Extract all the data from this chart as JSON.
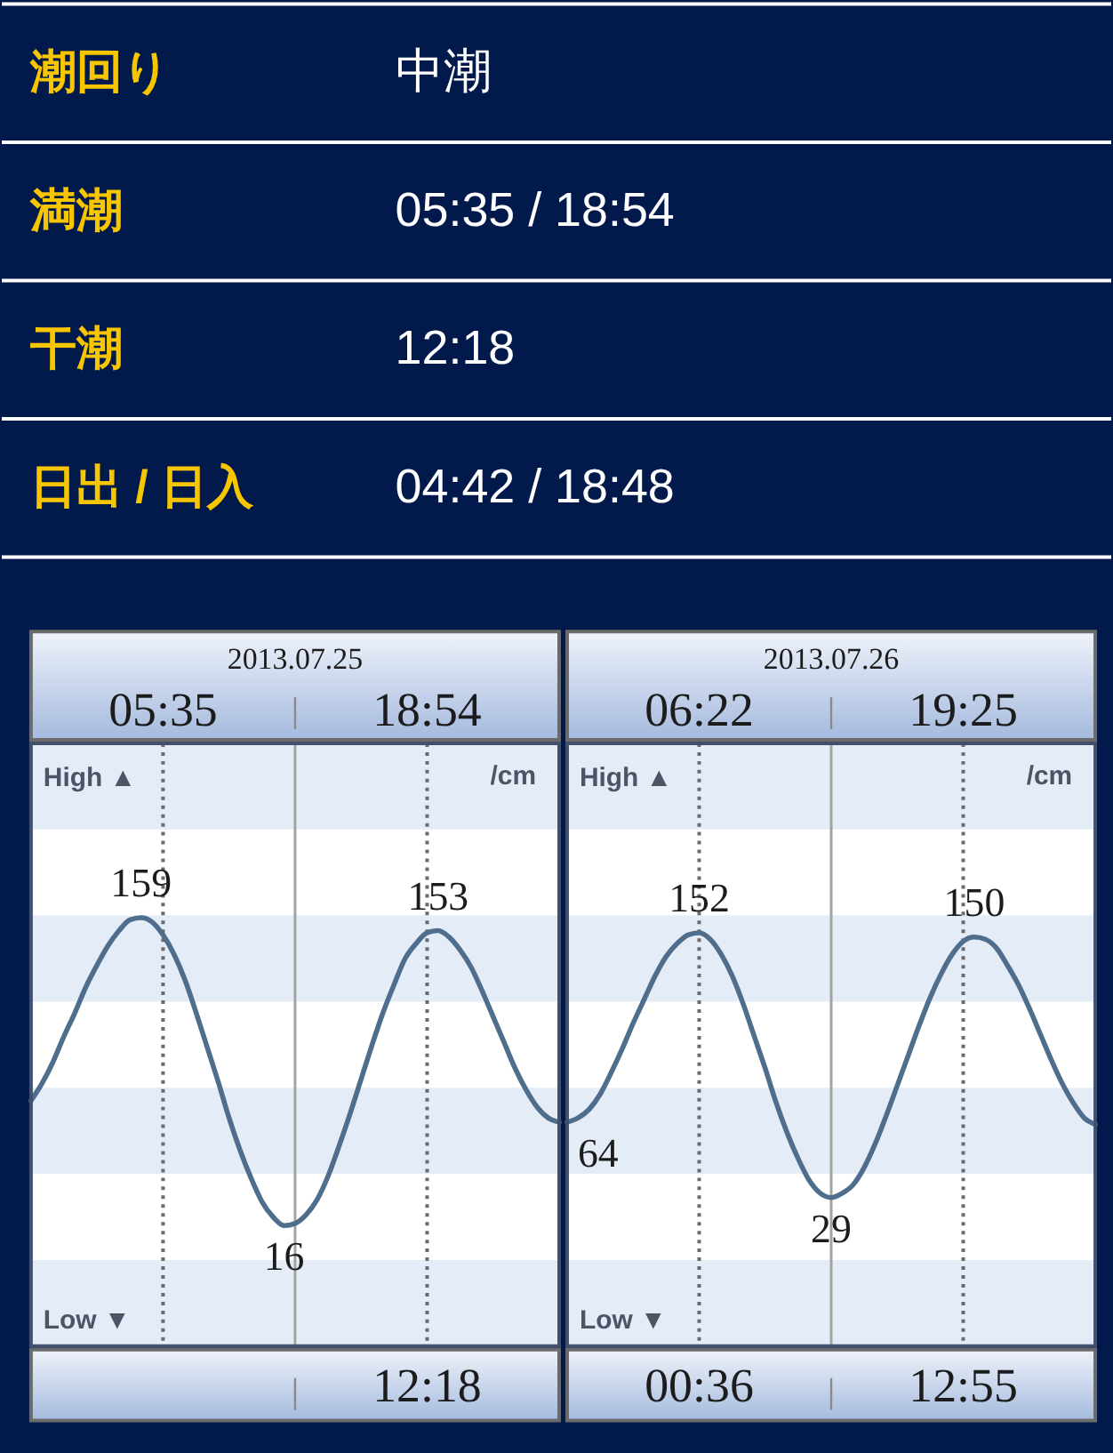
{
  "chart_data": [
    {
      "type": "other",
      "annotations": [
        "潮回り",
        "中潮",
        "満潮",
        "05:35 / 18:54",
        "干潮",
        "12:18",
        "日出 / 日入",
        "04:42 / 18:48"
      ]
    },
    {
      "type": "line",
      "title": "2013.07.25",
      "ylabel": "/cm",
      "annotations": [
        "High ▲",
        "Low ▼",
        "05:35",
        "18:54",
        "12:18"
      ],
      "categories": [
        null,
        null,
        null,
        null,
        null,
        null,
        null,
        null,
        null,
        null,
        null,
        null,
        null,
        null,
        null,
        null,
        null,
        null,
        null,
        null,
        null,
        null,
        null,
        null,
        null,
        null,
        null,
        null,
        null,
        null,
        null,
        null,
        null,
        null,
        null,
        null,
        null,
        null,
        null,
        null,
        null,
        null,
        null,
        null,
        null,
        null,
        null,
        null,
        null
      ],
      "ylim": [
        -40,
        240
      ],
      "series": [
        {
          "color": "#4f6d8c",
          "values": [
            74,
            82,
            92,
            104,
            115,
            127,
            137,
            146,
            153,
            158,
            159,
            157,
            151,
            142,
            130,
            115,
            99,
            83,
            66,
            51,
            38,
            27,
            20,
            16,
            17,
            21,
            28,
            39,
            53,
            68,
            84,
            100,
            115,
            128,
            140,
            147,
            152,
            153,
            150,
            144,
            136,
            125,
            113,
            101,
            89,
            79,
            71,
            66,
            64
          ],
          "value_labels": [
            null,
            null,
            null,
            null,
            null,
            null,
            null,
            null,
            null,
            null,
            "159",
            null,
            null,
            null,
            null,
            null,
            null,
            null,
            null,
            null,
            null,
            null,
            null,
            "16",
            null,
            null,
            null,
            null,
            null,
            null,
            null,
            null,
            null,
            null,
            null,
            null,
            null,
            "153",
            null,
            null,
            null,
            null,
            null,
            null,
            null,
            null,
            null,
            null,
            null
          ]
        }
      ],
      "bands": [
        {
          "axis": "y",
          "from": 200,
          "to": 240,
          "color": "#e4ecf7"
        },
        {
          "axis": "y",
          "from": 120,
          "to": 160,
          "color": "#e4ecf7"
        },
        {
          "axis": "y",
          "from": 40,
          "to": 80,
          "color": "#e4ecf7"
        },
        {
          "axis": "y",
          "from": -40,
          "to": 0,
          "color": "#e4ecf7"
        }
      ]
    },
    {
      "type": "line",
      "title": "2013.07.26",
      "ylabel": "/cm",
      "annotations": [
        "High ▲",
        "Low ▼",
        "06:22",
        "19:25",
        "00:36",
        "12:55"
      ],
      "categories": [
        null,
        null,
        null,
        null,
        null,
        null,
        null,
        null,
        null,
        null,
        null,
        null,
        null,
        null,
        null,
        null,
        null,
        null,
        null,
        null,
        null,
        null,
        null,
        null,
        null,
        null,
        null,
        null,
        null,
        null,
        null,
        null,
        null,
        null,
        null,
        null,
        null,
        null,
        null,
        null,
        null,
        null,
        null,
        null,
        null,
        null,
        null,
        null,
        null
      ],
      "ylim": [
        -40,
        240
      ],
      "series": [
        {
          "color": "#4f6d8c",
          "values": [
            64,
            66,
            70,
            77,
            87,
            98,
            110,
            121,
            132,
            141,
            147,
            151,
            152,
            149,
            142,
            132,
            119,
            104,
            89,
            73,
            59,
            47,
            37,
            31,
            29,
            31,
            35,
            43,
            54,
            67,
            81,
            95,
            109,
            122,
            133,
            142,
            148,
            150,
            149,
            145,
            137,
            128,
            117,
            105,
            93,
            82,
            73,
            66,
            63
          ],
          "value_labels": [
            "64",
            null,
            null,
            null,
            null,
            null,
            null,
            null,
            null,
            null,
            null,
            null,
            "152",
            null,
            null,
            null,
            null,
            null,
            null,
            null,
            null,
            null,
            null,
            null,
            "29",
            null,
            null,
            null,
            null,
            null,
            null,
            null,
            null,
            null,
            null,
            null,
            null,
            "150",
            null,
            null,
            null,
            null,
            null,
            null,
            null,
            null,
            null,
            null,
            null
          ]
        }
      ],
      "bands": [
        {
          "axis": "y",
          "from": 200,
          "to": 240,
          "color": "#e4ecf7"
        },
        {
          "axis": "y",
          "from": 120,
          "to": 160,
          "color": "#e4ecf7"
        },
        {
          "axis": "y",
          "from": 40,
          "to": 80,
          "color": "#e4ecf7"
        },
        {
          "axis": "y",
          "from": -40,
          "to": 0,
          "color": "#e4ecf7"
        }
      ]
    }
  ]
}
